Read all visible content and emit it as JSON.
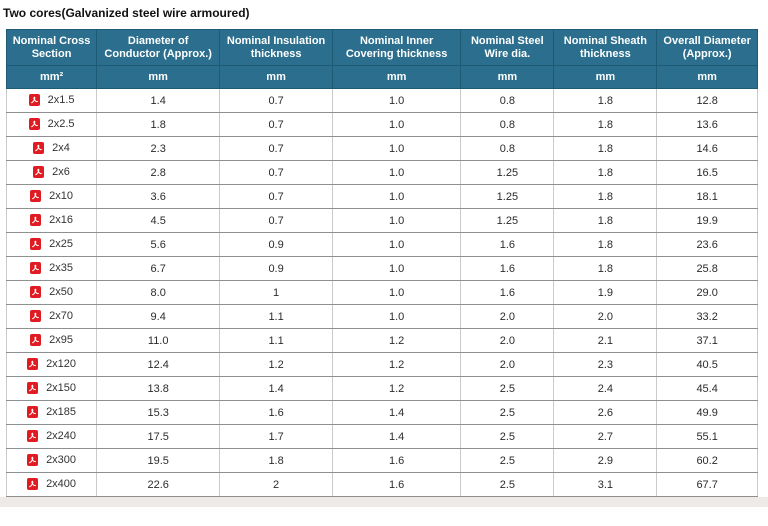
{
  "page": {
    "title": "Two cores(Galvanized steel wire armoured)"
  },
  "colors": {
    "header_bg": "#2b6e8d",
    "header_border": "#1d5a75",
    "header_text": "#ffffff",
    "pdf_red": "#e01b22",
    "row_border_horizontal": "#8f8f8f",
    "row_border_vertical": "#cbcbcb",
    "below_table_bg": "#edeae7"
  },
  "icons": {
    "row_icon": "pdf-icon"
  },
  "table": {
    "columns": [
      {
        "label": "Nominal Cross Section",
        "unit": "mm²",
        "width_pct": 12.0
      },
      {
        "label": "Diameter of Conductor (Approx.)",
        "unit": "mm",
        "width_pct": 16.4
      },
      {
        "label": "Nominal Insulation thickness",
        "unit": "mm",
        "width_pct": 15.0
      },
      {
        "label": "Nominal Inner Covering thickness",
        "unit": "mm",
        "width_pct": 17.1
      },
      {
        "label": "Nominal Steel Wire dia.",
        "unit": "mm",
        "width_pct": 12.4
      },
      {
        "label": "Nominal Sheath thickness",
        "unit": "mm",
        "width_pct": 13.7
      },
      {
        "label": "Overall Diameter (Approx.)",
        "unit": "mm",
        "width_pct": 13.4
      }
    ],
    "rows": [
      {
        "cross_section": "2x1.5",
        "values": [
          "1.4",
          "0.7",
          "1.0",
          "0.8",
          "1.8",
          "12.8"
        ]
      },
      {
        "cross_section": "2x2.5",
        "values": [
          "1.8",
          "0.7",
          "1.0",
          "0.8",
          "1.8",
          "13.6"
        ]
      },
      {
        "cross_section": "2x4",
        "values": [
          "2.3",
          "0.7",
          "1.0",
          "0.8",
          "1.8",
          "14.6"
        ]
      },
      {
        "cross_section": "2x6",
        "values": [
          "2.8",
          "0.7",
          "1.0",
          "1.25",
          "1.8",
          "16.5"
        ]
      },
      {
        "cross_section": "2x10",
        "values": [
          "3.6",
          "0.7",
          "1.0",
          "1.25",
          "1.8",
          "18.1"
        ]
      },
      {
        "cross_section": "2x16",
        "values": [
          "4.5",
          "0.7",
          "1.0",
          "1.25",
          "1.8",
          "19.9"
        ]
      },
      {
        "cross_section": "2x25",
        "values": [
          "5.6",
          "0.9",
          "1.0",
          "1.6",
          "1.8",
          "23.6"
        ]
      },
      {
        "cross_section": "2x35",
        "values": [
          "6.7",
          "0.9",
          "1.0",
          "1.6",
          "1.8",
          "25.8"
        ]
      },
      {
        "cross_section": "2x50",
        "values": [
          "8.0",
          "1",
          "1.0",
          "1.6",
          "1.9",
          "29.0"
        ]
      },
      {
        "cross_section": "2x70",
        "values": [
          "9.4",
          "1.1",
          "1.0",
          "2.0",
          "2.0",
          "33.2"
        ]
      },
      {
        "cross_section": "2x95",
        "values": [
          "11.0",
          "1.1",
          "1.2",
          "2.0",
          "2.1",
          "37.1"
        ]
      },
      {
        "cross_section": "2x120",
        "values": [
          "12.4",
          "1.2",
          "1.2",
          "2.0",
          "2.3",
          "40.5"
        ]
      },
      {
        "cross_section": "2x150",
        "values": [
          "13.8",
          "1.4",
          "1.2",
          "2.5",
          "2.4",
          "45.4"
        ]
      },
      {
        "cross_section": "2x185",
        "values": [
          "15.3",
          "1.6",
          "1.4",
          "2.5",
          "2.6",
          "49.9"
        ]
      },
      {
        "cross_section": "2x240",
        "values": [
          "17.5",
          "1.7",
          "1.4",
          "2.5",
          "2.7",
          "55.1"
        ]
      },
      {
        "cross_section": "2x300",
        "values": [
          "19.5",
          "1.8",
          "1.6",
          "2.5",
          "2.9",
          "60.2"
        ]
      },
      {
        "cross_section": "2x400",
        "values": [
          "22.6",
          "2",
          "1.6",
          "2.5",
          "3.1",
          "67.7"
        ]
      }
    ]
  }
}
